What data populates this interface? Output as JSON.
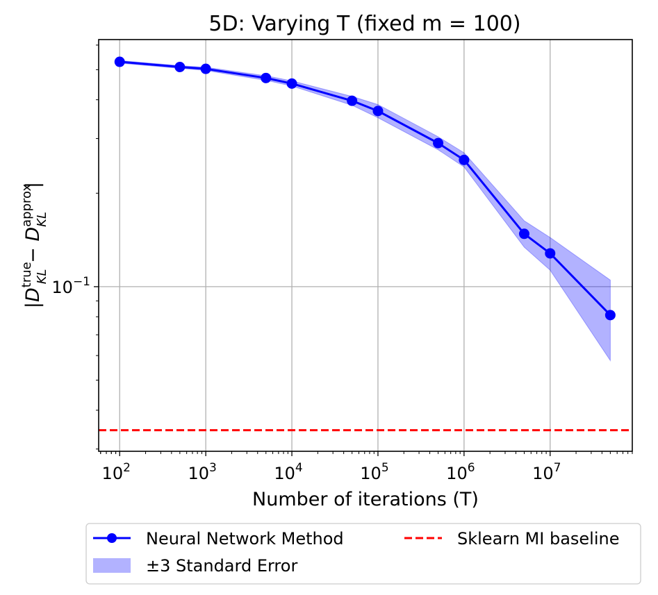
{
  "chart_data": {
    "type": "line",
    "title": "5D: Varying T (fixed m = 100)",
    "xlabel": "Number of iterations (T)",
    "ylabel": {
      "prefix": "|D",
      "true_sup": "true",
      "kl_sub": "KL",
      "minus": " − D",
      "approx_sup": "approx",
      "suffix": "|"
    },
    "xscale": "log",
    "yscale": "log",
    "xlim": [
      57,
      90000000
    ],
    "ylim": [
      0.0295,
      0.625
    ],
    "x_ticks": [
      {
        "value": 100,
        "base": "10",
        "exp": "2"
      },
      {
        "value": 1000,
        "base": "10",
        "exp": "3"
      },
      {
        "value": 10000,
        "base": "10",
        "exp": "4"
      },
      {
        "value": 100000,
        "base": "10",
        "exp": "5"
      },
      {
        "value": 1000000,
        "base": "10",
        "exp": "6"
      },
      {
        "value": 10000000,
        "base": "10",
        "exp": "7"
      }
    ],
    "y_ticks": [
      {
        "value": 0.1,
        "base": "10",
        "exp": "−1"
      }
    ],
    "y_minor_ticks": [
      0.03,
      0.04,
      0.05,
      0.06,
      0.07,
      0.08,
      0.09,
      0.2,
      0.3,
      0.4,
      0.5,
      0.6
    ],
    "grid": true,
    "series": [
      {
        "name": "Neural Network Method",
        "color": "#0000ff",
        "marker": "circle",
        "x": [
          100,
          500,
          1000,
          5000,
          10000,
          50000,
          100000,
          500000,
          1000000,
          5000000,
          10000000,
          50000000
        ],
        "y": [
          0.53,
          0.51,
          0.503,
          0.47,
          0.451,
          0.397,
          0.368,
          0.29,
          0.256,
          0.148,
          0.128,
          0.081
        ],
        "band_lower": [
          0.525,
          0.505,
          0.497,
          0.462,
          0.443,
          0.384,
          0.35,
          0.276,
          0.243,
          0.134,
          0.113,
          0.0578
        ],
        "band_upper": [
          0.535,
          0.515,
          0.509,
          0.478,
          0.46,
          0.41,
          0.386,
          0.304,
          0.27,
          0.163,
          0.144,
          0.105
        ]
      }
    ],
    "band": {
      "name": "±3 Standard Error",
      "color": "#0000ff",
      "opacity": 0.3
    },
    "baseline": {
      "name": "Sklearn MI baseline",
      "value": 0.0345,
      "color": "#ff0000",
      "style": "dashed"
    },
    "legend": {
      "placement": "below",
      "entries": [
        "Neural Network Method",
        "±3 Standard Error",
        "Sklearn MI baseline"
      ]
    }
  }
}
